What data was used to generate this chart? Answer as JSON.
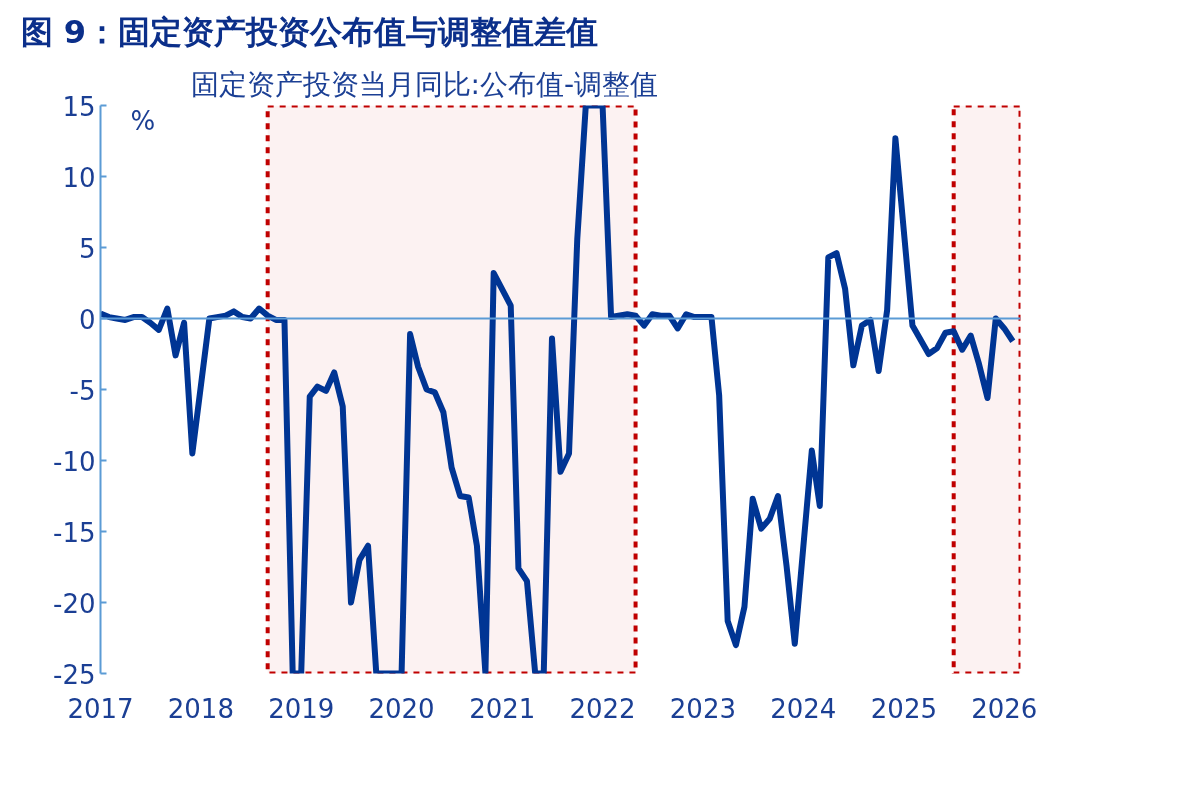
{
  "chart_data": {
    "type": "line",
    "title": "图 9：固定资产投资公布值与调整值差值",
    "subtitle": "固定资产投资当月同比:公布值-调整值",
    "ylabel": "%",
    "series": [
      {
        "color": "#003594",
        "x": [
          "2017-01",
          "2017-02",
          "2017-03",
          "2017-04",
          "2017-05",
          "2017-06",
          "2017-07",
          "2017-08",
          "2017-09",
          "2017-10",
          "2017-11",
          "2017-12",
          "2018-02",
          "2018-03",
          "2018-04",
          "2018-05",
          "2018-06",
          "2018-07",
          "2018-08",
          "2018-09",
          "2018-10",
          "2018-11",
          "2018-12",
          "2019-01",
          "2019-02",
          "2019-03",
          "2019-04",
          "2019-05",
          "2019-06",
          "2019-07",
          "2019-08",
          "2019-09",
          "2019-10",
          "2020-01",
          "2020-02",
          "2020-03",
          "2020-04",
          "2020-05",
          "2020-06",
          "2020-07",
          "2020-08",
          "2020-09",
          "2020-10",
          "2020-11",
          "2020-12",
          "2021-02",
          "2021-03",
          "2021-04",
          "2021-05",
          "2021-06",
          "2021-07",
          "2021-08",
          "2021-09",
          "2021-10",
          "2021-11",
          "2022-01",
          "2022-02",
          "2022-04",
          "2022-05",
          "2022-06",
          "2022-07",
          "2022-08",
          "2022-09",
          "2022-10",
          "2022-11",
          "2022-12",
          "2023-02",
          "2023-03",
          "2023-04",
          "2023-05",
          "2023-06",
          "2023-07",
          "2023-08",
          "2023-09",
          "2023-10",
          "2023-11",
          "2023-12",
          "2024-02",
          "2024-03",
          "2024-04",
          "2024-05",
          "2024-06",
          "2024-07",
          "2024-08",
          "2024-09",
          "2024-10",
          "2024-11",
          "2024-12",
          "2025-02",
          "2025-04",
          "2025-05",
          "2025-06",
          "2025-07",
          "2025-08",
          "2025-09",
          "2025-10",
          "2025-11",
          "2025-12",
          "2026-01",
          "2026-02"
        ],
        "values": [
          0.35,
          0.1,
          0.0,
          -0.1,
          0.1,
          0.1,
          -0.3,
          -0.8,
          0.7,
          -2.6,
          -0.3,
          -9.5,
          0.0,
          0.1,
          0.2,
          0.5,
          0.1,
          0.0,
          0.7,
          0.2,
          -0.1,
          -0.1,
          -25,
          -25,
          -5.5,
          -4.8,
          -5.1,
          -3.8,
          -6.2,
          -20.0,
          -17.0,
          -16.0,
          -25,
          -25,
          -1.1,
          -3.4,
          -5.0,
          -5.2,
          -6.6,
          -10.5,
          -12.5,
          -12.6,
          -16.0,
          -25,
          3.2,
          0.9,
          -17.6,
          -18.5,
          -25,
          -25,
          -1.4,
          -10.8,
          -9.5,
          5.6,
          15,
          15,
          0.1,
          0.3,
          0.2,
          -0.5,
          0.3,
          0.2,
          0.2,
          -0.7,
          0.3,
          0.1,
          0.1,
          -5.4,
          -21.3,
          -23.0,
          -20.3,
          -12.7,
          -14.8,
          -14.1,
          -12.5,
          -17.4,
          -22.9,
          -9.3,
          -13.2,
          4.3,
          4.6,
          2.1,
          -3.3,
          -0.5,
          -0.1,
          -3.7,
          0.6,
          12.7,
          -0.5,
          -2.5,
          -2.1,
          -1.0,
          -0.9,
          -2.2,
          -1.2,
          -3.2,
          -5.6,
          0.0,
          -0.7,
          -1.6
        ]
      }
    ],
    "xlim": [
      "2017-01",
      "2026-03"
    ],
    "xticks": [
      "2017",
      "2018",
      "2019",
      "2020",
      "2021",
      "2022",
      "2023",
      "2024",
      "2025",
      "2026"
    ],
    "ylim": [
      -25,
      15
    ],
    "yticks": [
      -25,
      -20,
      -15,
      -10,
      -5,
      0,
      5,
      10,
      15
    ],
    "ref_lines": [
      {
        "axis": "y",
        "value": 0,
        "color": "#5b9bd5"
      }
    ],
    "bands": [
      {
        "axis": "x",
        "from": "2018-09",
        "to": "2022-05",
        "color": "#c00000"
      },
      {
        "axis": "x",
        "from": "2025-07",
        "to": "2026-03",
        "color": "#c00000"
      }
    ],
    "grid": false,
    "marker": "none",
    "line_style": "solid"
  }
}
